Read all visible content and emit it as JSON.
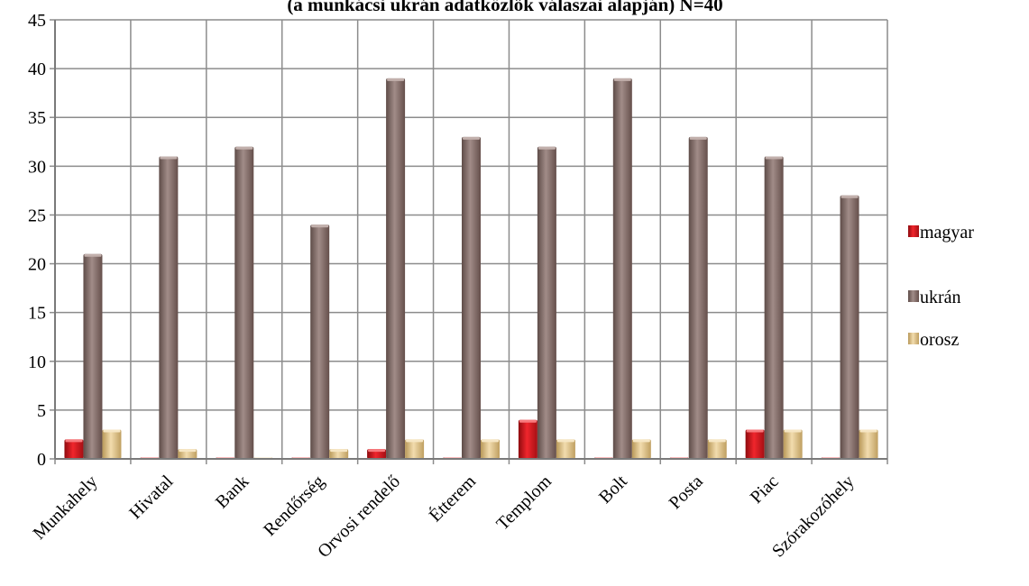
{
  "chart_data": {
    "type": "bar",
    "title": "(a munkácsi ukrán adatközlők válaszai alapján) N=40",
    "categories": [
      "Munkahely",
      "Hivatal",
      "Bank",
      "Rendőrség",
      "Orvosi rendelő",
      "Étterem",
      "Templom",
      "Bolt",
      "Posta",
      "Piac",
      "Szórakozóhely"
    ],
    "series": [
      {
        "name": "magyar",
        "values": [
          2,
          0,
          0,
          0,
          1,
          0,
          4,
          0,
          0,
          3,
          0
        ],
        "color": "#d9141b"
      },
      {
        "name": "ukrán",
        "values": [
          21,
          31,
          32,
          24,
          39,
          33,
          32,
          39,
          33,
          31,
          27
        ],
        "color": "#8a7470"
      },
      {
        "name": "orosz",
        "values": [
          3,
          1,
          0,
          1,
          2,
          2,
          2,
          2,
          2,
          3,
          3
        ],
        "color": "#dcc08a"
      }
    ],
    "ylim": [
      0,
      45
    ],
    "yticks": [
      0,
      5,
      10,
      15,
      20,
      25,
      30,
      35,
      40,
      45
    ],
    "grid": true,
    "legend_position": "right",
    "xlabel": "",
    "ylabel": ""
  }
}
